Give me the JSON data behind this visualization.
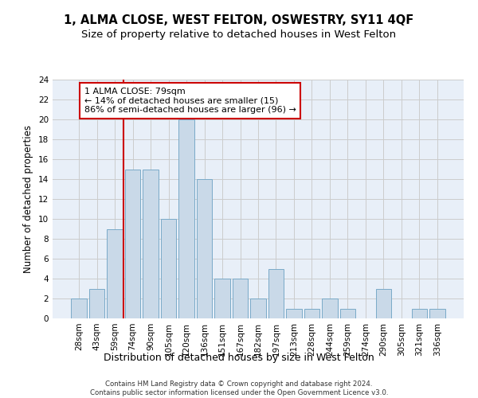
{
  "title": "1, ALMA CLOSE, WEST FELTON, OSWESTRY, SY11 4QF",
  "subtitle": "Size of property relative to detached houses in West Felton",
  "xlabel": "Distribution of detached houses by size in West Felton",
  "ylabel": "Number of detached properties",
  "footer_line1": "Contains HM Land Registry data © Crown copyright and database right 2024.",
  "footer_line2": "Contains public sector information licensed under the Open Government Licence v3.0.",
  "bar_labels": [
    "28sqm",
    "43sqm",
    "59sqm",
    "74sqm",
    "90sqm",
    "105sqm",
    "120sqm",
    "136sqm",
    "151sqm",
    "167sqm",
    "182sqm",
    "197sqm",
    "213sqm",
    "228sqm",
    "244sqm",
    "259sqm",
    "274sqm",
    "290sqm",
    "305sqm",
    "321sqm",
    "336sqm"
  ],
  "bar_values": [
    2,
    3,
    9,
    15,
    15,
    10,
    20,
    14,
    4,
    4,
    2,
    5,
    1,
    1,
    2,
    1,
    0,
    3,
    0,
    1,
    1
  ],
  "bar_color": "#c9d9e8",
  "bar_edge_color": "#7aaac8",
  "annotation_text": "1 ALMA CLOSE: 79sqm\n← 14% of detached houses are smaller (15)\n86% of semi-detached houses are larger (96) →",
  "annotation_box_color": "white",
  "annotation_box_edge_color": "#cc0000",
  "vline_x_index": 3,
  "vline_color": "#cc0000",
  "ylim": [
    0,
    24
  ],
  "yticks": [
    0,
    2,
    4,
    6,
    8,
    10,
    12,
    14,
    16,
    18,
    20,
    22,
    24
  ],
  "grid_color": "#cccccc",
  "bg_color": "#e8eff8",
  "title_fontsize": 10.5,
  "subtitle_fontsize": 9.5,
  "ylabel_fontsize": 8.5,
  "xlabel_fontsize": 9,
  "tick_fontsize": 7.5,
  "annotation_fontsize": 8.0
}
